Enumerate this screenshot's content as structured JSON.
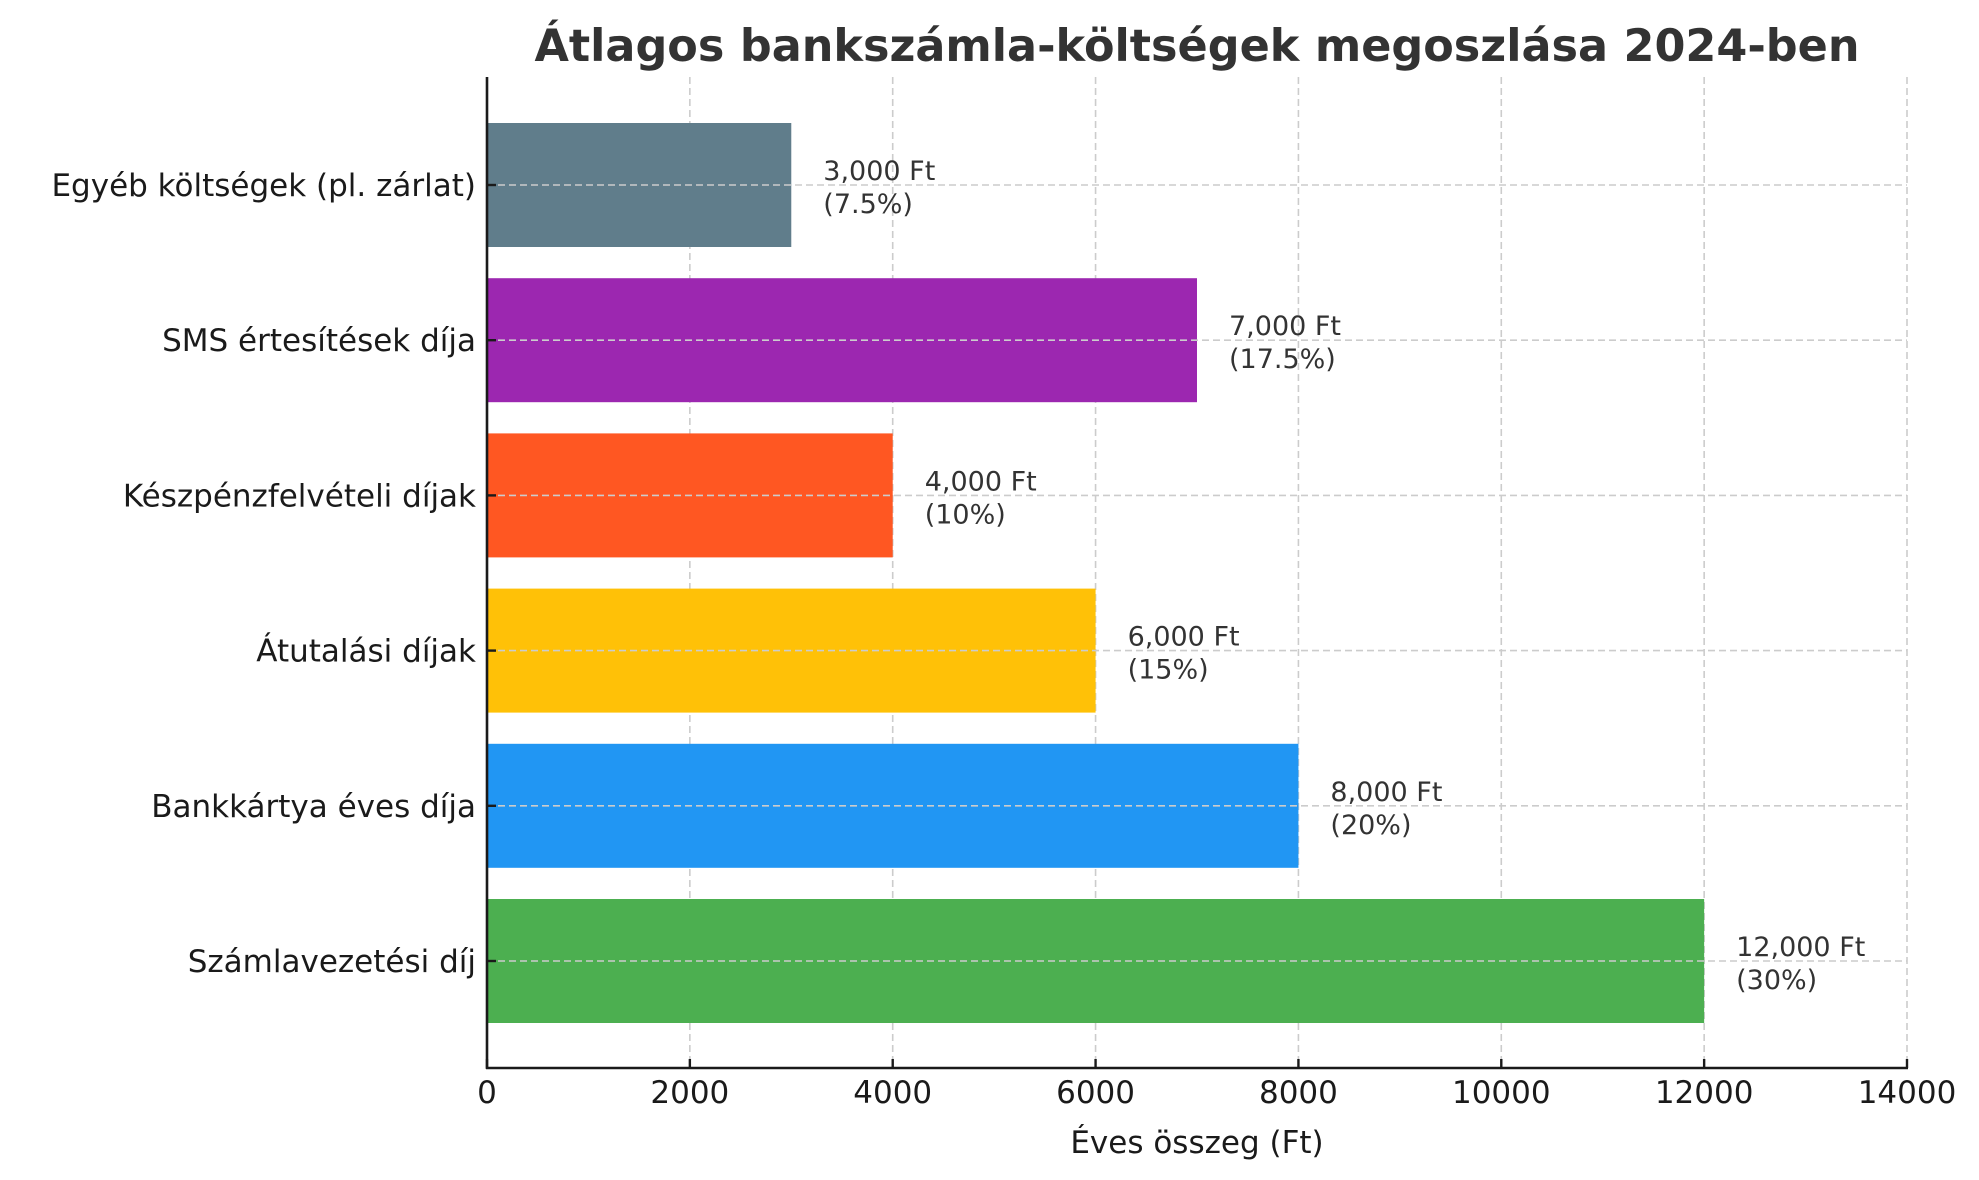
{
  "chart_data": {
    "type": "bar",
    "orientation": "horizontal",
    "title": "Átlagos bankszámla-költségek megoszlása 2024-ben",
    "xlabel": "Éves összeg (Ft)",
    "ylabel": "",
    "xlim": [
      0,
      14000
    ],
    "xticks": [
      0,
      2000,
      4000,
      6000,
      8000,
      10000,
      12000,
      14000
    ],
    "xtick_labels": [
      "0",
      "2000",
      "4000",
      "6000",
      "8000",
      "10000",
      "12000",
      "14000"
    ],
    "grid": true,
    "legend": null,
    "categories": [
      "Számlavezetési díj",
      "Bankkártya éves díja",
      "Átutalási díjak",
      "Készpénzfelvételi díjak",
      "SMS értesítések díja",
      "Egyéb költségek (pl. zárlat)"
    ],
    "values": [
      12000,
      8000,
      6000,
      4000,
      7000,
      3000
    ],
    "percentages": [
      30,
      20,
      15,
      10,
      17.5,
      7.5
    ],
    "colors": [
      "#4CAF50",
      "#2196F3",
      "#FFC107",
      "#FF5722",
      "#9C27B0",
      "#607D8B"
    ],
    "value_labels": [
      [
        "12,000 Ft",
        "(30%)"
      ],
      [
        "8,000 Ft",
        "(20%)"
      ],
      [
        "6,000 Ft",
        "(15%)"
      ],
      [
        "4,000 Ft",
        "(10%)"
      ],
      [
        "7,000 Ft",
        "(17.5%)"
      ],
      [
        "3,000 Ft",
        "(7.5%)"
      ]
    ]
  }
}
